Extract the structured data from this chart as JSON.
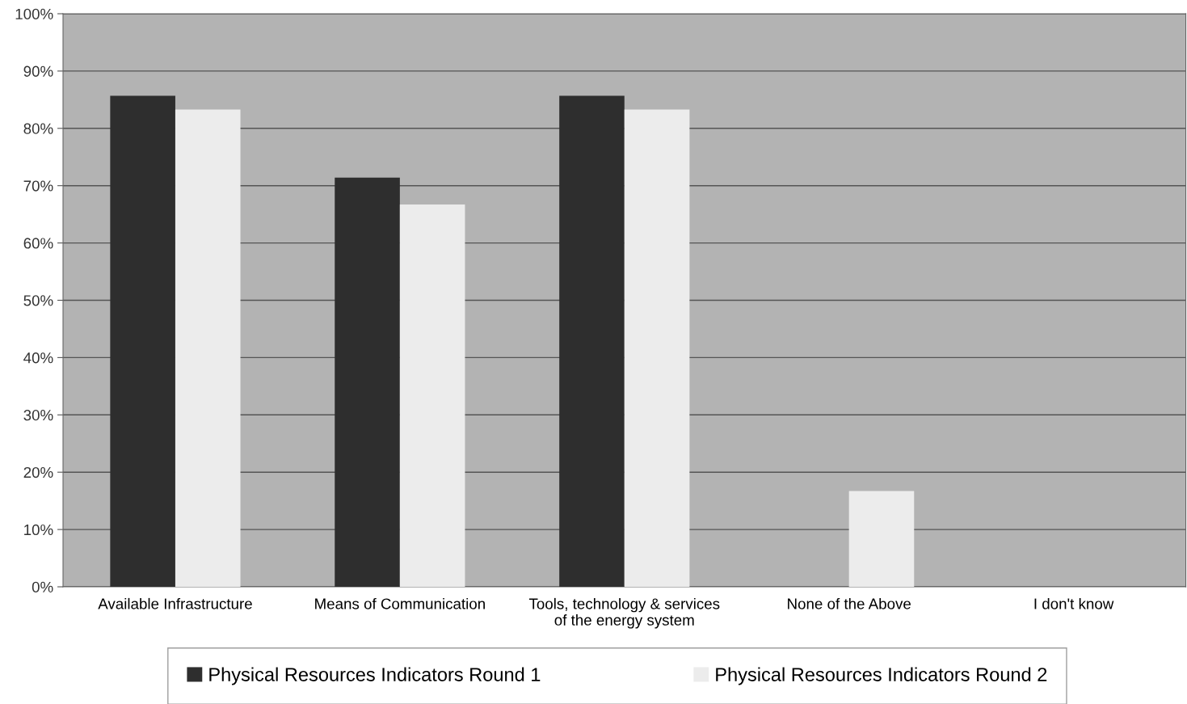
{
  "chart_data": {
    "type": "bar",
    "categories": [
      "Available Infrastructure",
      "Means of Communication",
      "Tools, technology & services\nof the energy system",
      "None of the Above",
      "I don't know"
    ],
    "series": [
      {
        "name": "Physical Resources Indicators Round 1",
        "color": "#2e2e2e",
        "values": [
          85.7,
          71.4,
          85.7,
          0,
          0
        ]
      },
      {
        "name": "Physical Resources Indicators Round 2",
        "color": "#ececec",
        "values": [
          83.3,
          66.7,
          83.3,
          16.7,
          0
        ]
      }
    ],
    "ylim": [
      0,
      100
    ],
    "yticks": [
      {
        "value": 0,
        "label": "0%"
      },
      {
        "value": 10,
        "label": "10%"
      },
      {
        "value": 20,
        "label": "20%"
      },
      {
        "value": 30,
        "label": "30%"
      },
      {
        "value": 40,
        "label": "40%"
      },
      {
        "value": 50,
        "label": "50%"
      },
      {
        "value": 60,
        "label": "60%"
      },
      {
        "value": 70,
        "label": "70%"
      },
      {
        "value": 80,
        "label": "80%"
      },
      {
        "value": 90,
        "label": "90%"
      },
      {
        "value": 100,
        "label": "100%"
      }
    ],
    "grid": "y",
    "legend": "bottom"
  }
}
